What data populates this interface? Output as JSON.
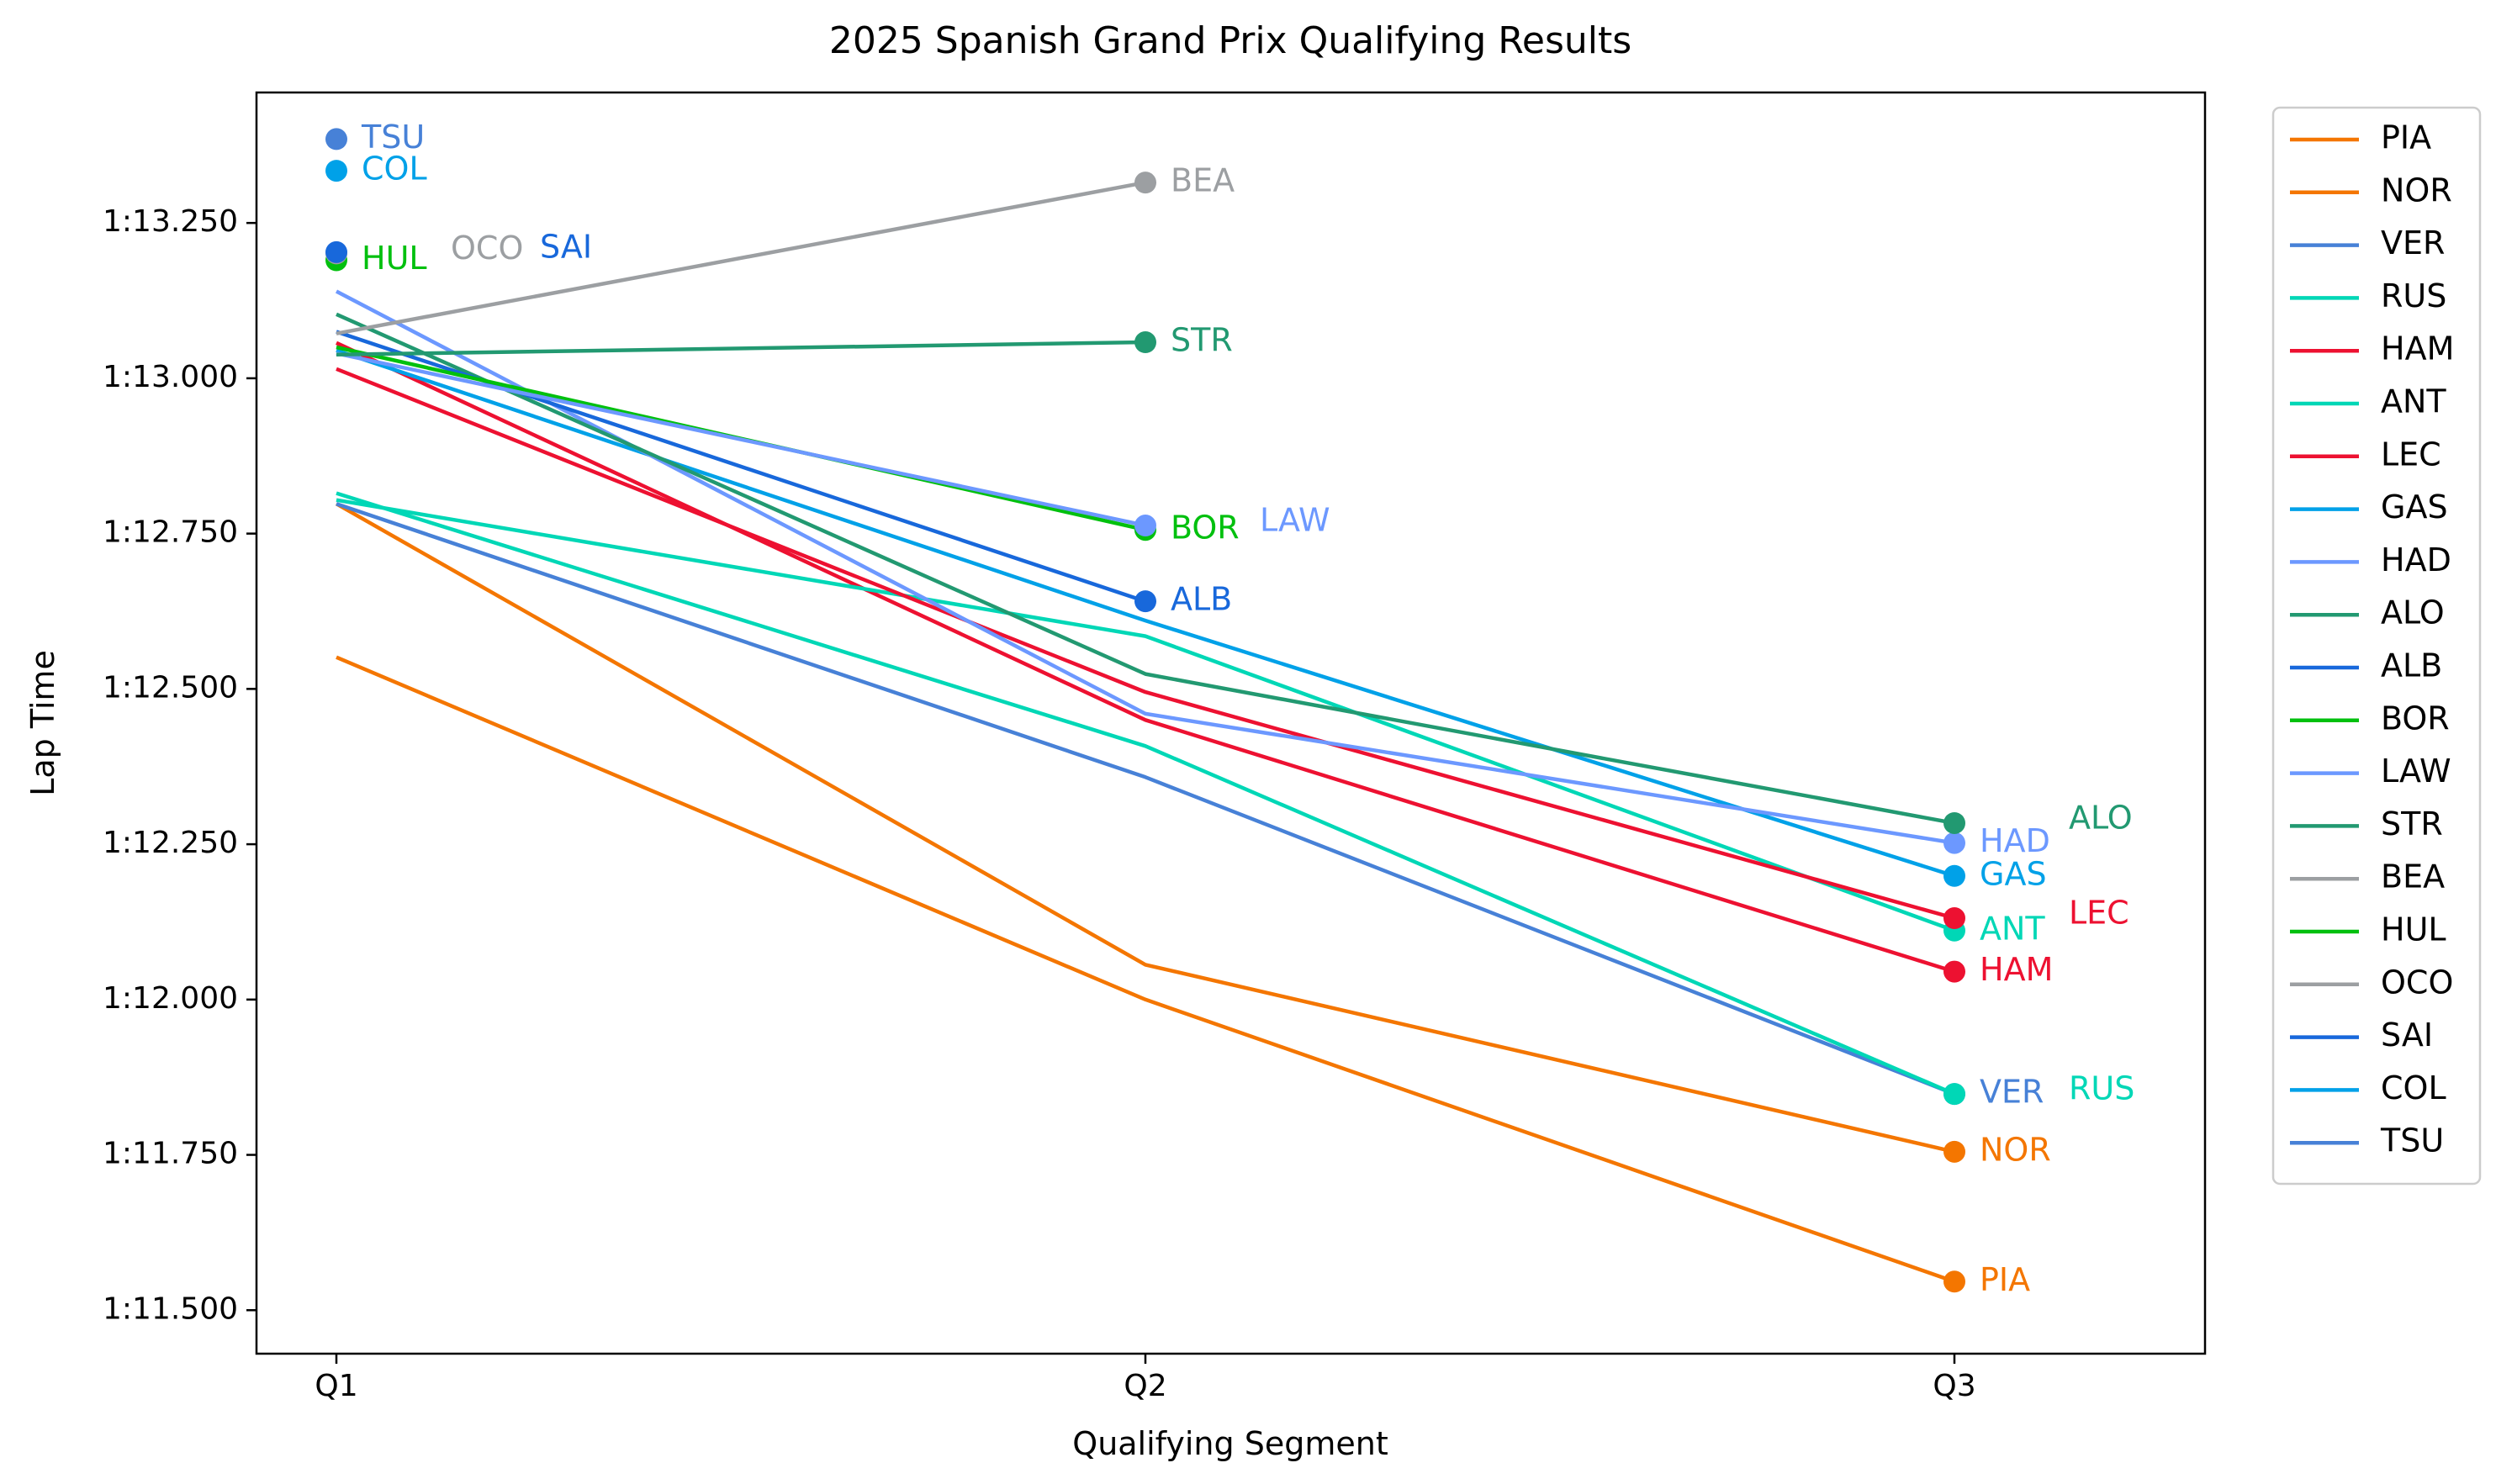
{
  "chart_data": {
    "type": "line",
    "title": "2025 Spanish Grand Prix Qualifying Results",
    "xlabel": "Qualifying Segment",
    "ylabel": "Lap Time",
    "categories": [
      "Q1",
      "Q2",
      "Q3"
    ],
    "y_unit": "seconds",
    "ylim": [
      71.43,
      73.46
    ],
    "yticks": [
      71.5,
      71.75,
      72.0,
      72.25,
      72.5,
      72.75,
      73.0,
      73.25
    ],
    "ytick_labels": [
      "1:11.500",
      "1:11.750",
      "1:12.000",
      "1:12.250",
      "1:12.500",
      "1:12.750",
      "1:13.000",
      "1:13.250"
    ],
    "grid": false,
    "legend_position": "outside-right",
    "series": [
      {
        "name": "PIA",
        "color": "#F47600",
        "values": [
          72.551,
          72.0,
          71.546
        ]
      },
      {
        "name": "NOR",
        "color": "#F47600",
        "values": [
          72.798,
          72.056,
          71.755
        ]
      },
      {
        "name": "VER",
        "color": "#4781D7",
        "values": [
          72.798,
          72.358,
          71.848
        ]
      },
      {
        "name": "RUS",
        "color": "#00D7B6",
        "values": [
          72.815,
          72.408,
          71.848
        ]
      },
      {
        "name": "HAM",
        "color": "#ED1131",
        "values": [
          73.057,
          72.45,
          72.045
        ]
      },
      {
        "name": "ANT",
        "color": "#00D7B6",
        "values": [
          72.804,
          72.585,
          72.111
        ]
      },
      {
        "name": "LEC",
        "color": "#ED1131",
        "values": [
          73.015,
          72.495,
          72.131
        ]
      },
      {
        "name": "GAS",
        "color": "#00A1E8",
        "values": [
          73.045,
          72.61,
          72.199
        ]
      },
      {
        "name": "HAD",
        "color": "#6C98FF",
        "values": [
          73.14,
          72.46,
          72.252
        ]
      },
      {
        "name": "ALO",
        "color": "#229971",
        "values": [
          73.103,
          72.524,
          72.284
        ]
      },
      {
        "name": "ALB",
        "color": "#1868DB",
        "values": [
          73.075,
          72.641,
          null
        ]
      },
      {
        "name": "BOR",
        "color": "#01C00E",
        "values": [
          73.05,
          72.756,
          null
        ]
      },
      {
        "name": "LAW",
        "color": "#6C98FF",
        "values": [
          73.04,
          72.763,
          null
        ]
      },
      {
        "name": "STR",
        "color": "#229971",
        "values": [
          73.038,
          73.058,
          null
        ]
      },
      {
        "name": "BEA",
        "color": "#9C9FA2",
        "values": [
          73.072,
          73.315,
          null
        ]
      },
      {
        "name": "HUL",
        "color": "#01C00E",
        "values": [
          73.19,
          null,
          null
        ]
      },
      {
        "name": "OCO",
        "color": "#9C9FA2",
        "values": [
          73.201,
          null,
          null
        ]
      },
      {
        "name": "SAI",
        "color": "#1868DB",
        "values": [
          73.203,
          null,
          null
        ]
      },
      {
        "name": "COL",
        "color": "#00A1E8",
        "values": [
          73.334,
          null,
          null
        ]
      },
      {
        "name": "TSU",
        "color": "#4781D7",
        "values": [
          73.385,
          null,
          null
        ]
      }
    ]
  }
}
